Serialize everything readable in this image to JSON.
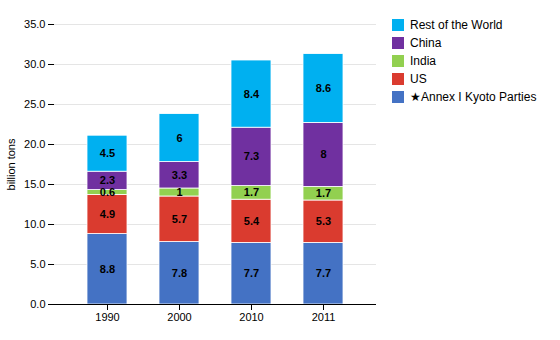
{
  "chart_data": {
    "type": "bar",
    "stacked": true,
    "data_labels": true,
    "grid": true,
    "legend": "upper right",
    "categories": [
      "1990",
      "2000",
      "2010",
      "2011"
    ],
    "series": [
      {
        "name": "★Annex I Kyoto Parties",
        "color": "#4472C4",
        "values": [
          8.8,
          7.8,
          7.7,
          7.7
        ]
      },
      {
        "name": "US",
        "color": "#DA3B2F",
        "values": [
          4.9,
          5.7,
          5.4,
          5.3
        ]
      },
      {
        "name": "India",
        "color": "#92D050",
        "values": [
          0.6,
          1.0,
          1.7,
          1.7
        ]
      },
      {
        "name": "China",
        "color": "#7030A0",
        "values": [
          2.3,
          3.3,
          7.3,
          8.0
        ]
      },
      {
        "name": "Rest of the World",
        "color": "#00B0F0",
        "values": [
          4.5,
          6.0,
          8.4,
          8.6
        ]
      }
    ],
    "ylabel": "billion tons",
    "ylim": [
      0,
      35
    ],
    "yticks": [
      {
        "value": 0,
        "label": "0.0"
      },
      {
        "value": 5,
        "label": "5.0"
      },
      {
        "value": 10,
        "label": "10.0"
      },
      {
        "value": 15,
        "label": "15.0"
      },
      {
        "value": 20,
        "label": "20.0"
      },
      {
        "value": 25,
        "label": "25.0"
      },
      {
        "value": 30,
        "label": "30.0"
      },
      {
        "value": 35,
        "label": "35.0"
      }
    ]
  }
}
